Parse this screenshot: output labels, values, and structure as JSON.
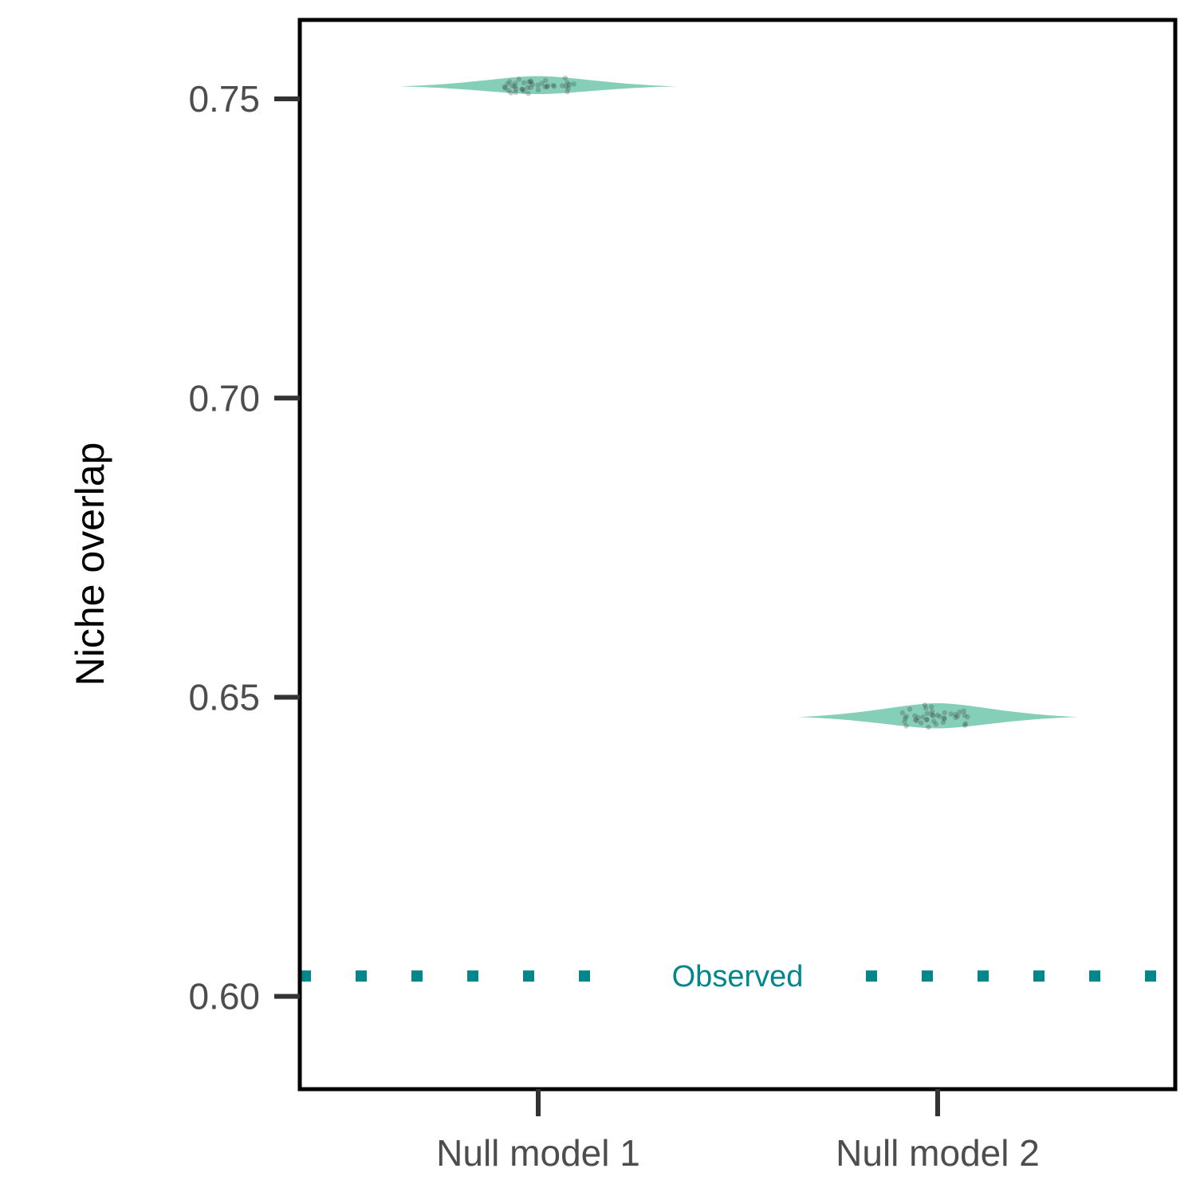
{
  "chart_data": {
    "type": "violin",
    "categories": [
      "Null model 1",
      "Null model 2"
    ],
    "ylabel": "Niche overlap",
    "xlabel": "",
    "ylim": [
      0.5845,
      0.7632
    ],
    "yticks": [
      0.6,
      0.65,
      0.7,
      0.75
    ],
    "ytick_labels": [
      "0.60",
      "0.65",
      "0.70",
      "0.75"
    ],
    "series": [
      {
        "category": "Null model 1",
        "center": 0.7521,
        "min": 0.7508,
        "max": 0.7538,
        "points": [
          0.7521,
          0.7518,
          0.7525,
          0.753,
          0.7512,
          0.7522,
          0.7528,
          0.7515,
          0.752,
          0.7533,
          0.751,
          0.7524,
          0.7519,
          0.7526,
          0.7523,
          0.7516,
          0.7529,
          0.7521,
          0.7513,
          0.7527,
          0.752,
          0.7535,
          0.7517,
          0.7522,
          0.7524,
          0.7511,
          0.7526,
          0.7519,
          0.7523,
          0.7531,
          0.7514,
          0.7521,
          0.7528,
          0.7518,
          0.7525,
          0.7509,
          0.7522,
          0.752,
          0.7527,
          0.7516
        ]
      },
      {
        "category": "Null model 2",
        "center": 0.6467,
        "min": 0.6448,
        "max": 0.649,
        "points": [
          0.6467,
          0.6462,
          0.6471,
          0.648,
          0.6455,
          0.6468,
          0.6475,
          0.6458,
          0.6466,
          0.6484,
          0.6452,
          0.647,
          0.6463,
          0.6473,
          0.6469,
          0.6459,
          0.6477,
          0.6466,
          0.6456,
          0.6474,
          0.6465,
          0.6487,
          0.6461,
          0.6468,
          0.6471,
          0.6453,
          0.6472,
          0.6464,
          0.6469,
          0.6482,
          0.6457,
          0.6467,
          0.6476,
          0.6462,
          0.647,
          0.645,
          0.6468,
          0.6465,
          0.6474,
          0.646
        ]
      }
    ],
    "reference_line": {
      "value": 0.6034,
      "label": "Observed",
      "style": "dotted"
    },
    "grid": false,
    "colors": {
      "violin": "#66c2a5",
      "points": "#333333",
      "reference": "#00868b",
      "axis": "#333333",
      "frame": "#000000"
    }
  }
}
